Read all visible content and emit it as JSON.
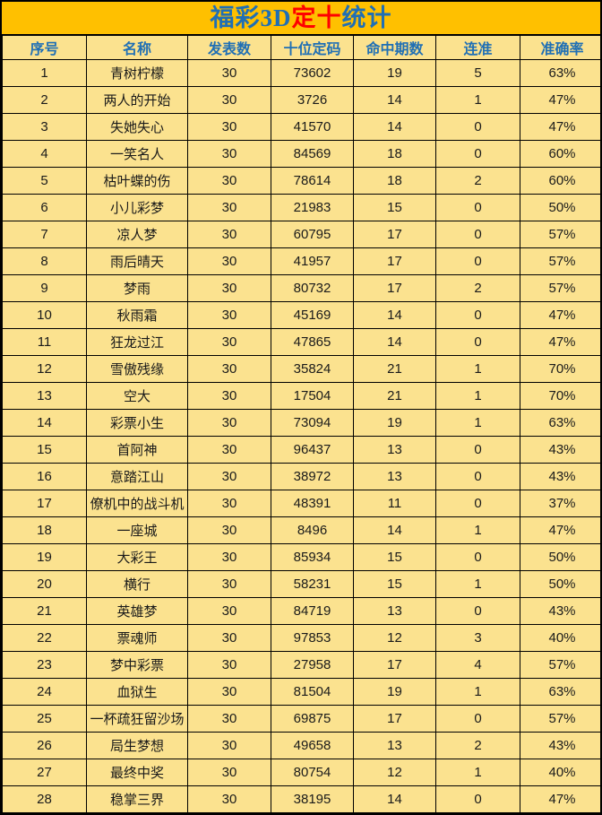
{
  "title": {
    "segments": [
      {
        "text": "福彩3D",
        "color": "#1F6FB5"
      },
      {
        "text": "定十",
        "color": "#FF0000"
      },
      {
        "text": "统计",
        "color": "#1F6FB5"
      }
    ],
    "full": "福彩3D定十统计"
  },
  "colors": {
    "banner_bg": "#FFC000",
    "cell_bg": "#FBE28F",
    "header_text": "#1F6FB5",
    "title_red": "#FF0000",
    "border": "#000000",
    "body_text": "#1A1A1A"
  },
  "chart_data": {
    "type": "table",
    "title": "福彩3D定十统计",
    "columns": [
      "序号",
      "名称",
      "发表数",
      "十位定码",
      "命中期数",
      "连准",
      "准确率"
    ],
    "column_keys": [
      "index",
      "name",
      "published-count",
      "tens-digit-code",
      "hit-periods",
      "consecutive-hits",
      "accuracy-rate"
    ],
    "rows": [
      [
        "1",
        "青树柠檬",
        "30",
        "73602",
        "19",
        "5",
        "63%"
      ],
      [
        "2",
        "两人的开始",
        "30",
        "3726",
        "14",
        "1",
        "47%"
      ],
      [
        "3",
        "失她失心",
        "30",
        "41570",
        "14",
        "0",
        "47%"
      ],
      [
        "4",
        "一笑名人",
        "30",
        "84569",
        "18",
        "0",
        "60%"
      ],
      [
        "5",
        "枯叶蝶的伤",
        "30",
        "78614",
        "18",
        "2",
        "60%"
      ],
      [
        "6",
        "小儿彩梦",
        "30",
        "21983",
        "15",
        "0",
        "50%"
      ],
      [
        "7",
        "凉人梦",
        "30",
        "60795",
        "17",
        "0",
        "57%"
      ],
      [
        "8",
        "雨后晴天",
        "30",
        "41957",
        "17",
        "0",
        "57%"
      ],
      [
        "9",
        "梦雨",
        "30",
        "80732",
        "17",
        "2",
        "57%"
      ],
      [
        "10",
        "秋雨霜",
        "30",
        "45169",
        "14",
        "0",
        "47%"
      ],
      [
        "11",
        "狂龙过江",
        "30",
        "47865",
        "14",
        "0",
        "47%"
      ],
      [
        "12",
        "雪傲残缘",
        "30",
        "35824",
        "21",
        "1",
        "70%"
      ],
      [
        "13",
        "空大",
        "30",
        "17504",
        "21",
        "1",
        "70%"
      ],
      [
        "14",
        "彩票小生",
        "30",
        "73094",
        "19",
        "1",
        "63%"
      ],
      [
        "15",
        "首阿神",
        "30",
        "96437",
        "13",
        "0",
        "43%"
      ],
      [
        "16",
        "意踏江山",
        "30",
        "38972",
        "13",
        "0",
        "43%"
      ],
      [
        "17",
        "僚机中的战斗机",
        "30",
        "48391",
        "11",
        "0",
        "37%"
      ],
      [
        "18",
        "一座城",
        "30",
        "8496",
        "14",
        "1",
        "47%"
      ],
      [
        "19",
        "大彩王",
        "30",
        "85934",
        "15",
        "0",
        "50%"
      ],
      [
        "20",
        "横行",
        "30",
        "58231",
        "15",
        "1",
        "50%"
      ],
      [
        "21",
        "英雄梦",
        "30",
        "84719",
        "13",
        "0",
        "43%"
      ],
      [
        "22",
        "票魂师",
        "30",
        "97853",
        "12",
        "3",
        "40%"
      ],
      [
        "23",
        "梦中彩票",
        "30",
        "27958",
        "17",
        "4",
        "57%"
      ],
      [
        "24",
        "血狱生",
        "30",
        "81504",
        "19",
        "1",
        "63%"
      ],
      [
        "25",
        "一杯疏狂留沙场",
        "30",
        "69875",
        "17",
        "0",
        "57%"
      ],
      [
        "26",
        "局生梦想",
        "30",
        "49658",
        "13",
        "2",
        "43%"
      ],
      [
        "27",
        "最终中奖",
        "30",
        "80754",
        "12",
        "1",
        "40%"
      ],
      [
        "28",
        "稳掌三界",
        "30",
        "38195",
        "14",
        "0",
        "47%"
      ]
    ]
  }
}
